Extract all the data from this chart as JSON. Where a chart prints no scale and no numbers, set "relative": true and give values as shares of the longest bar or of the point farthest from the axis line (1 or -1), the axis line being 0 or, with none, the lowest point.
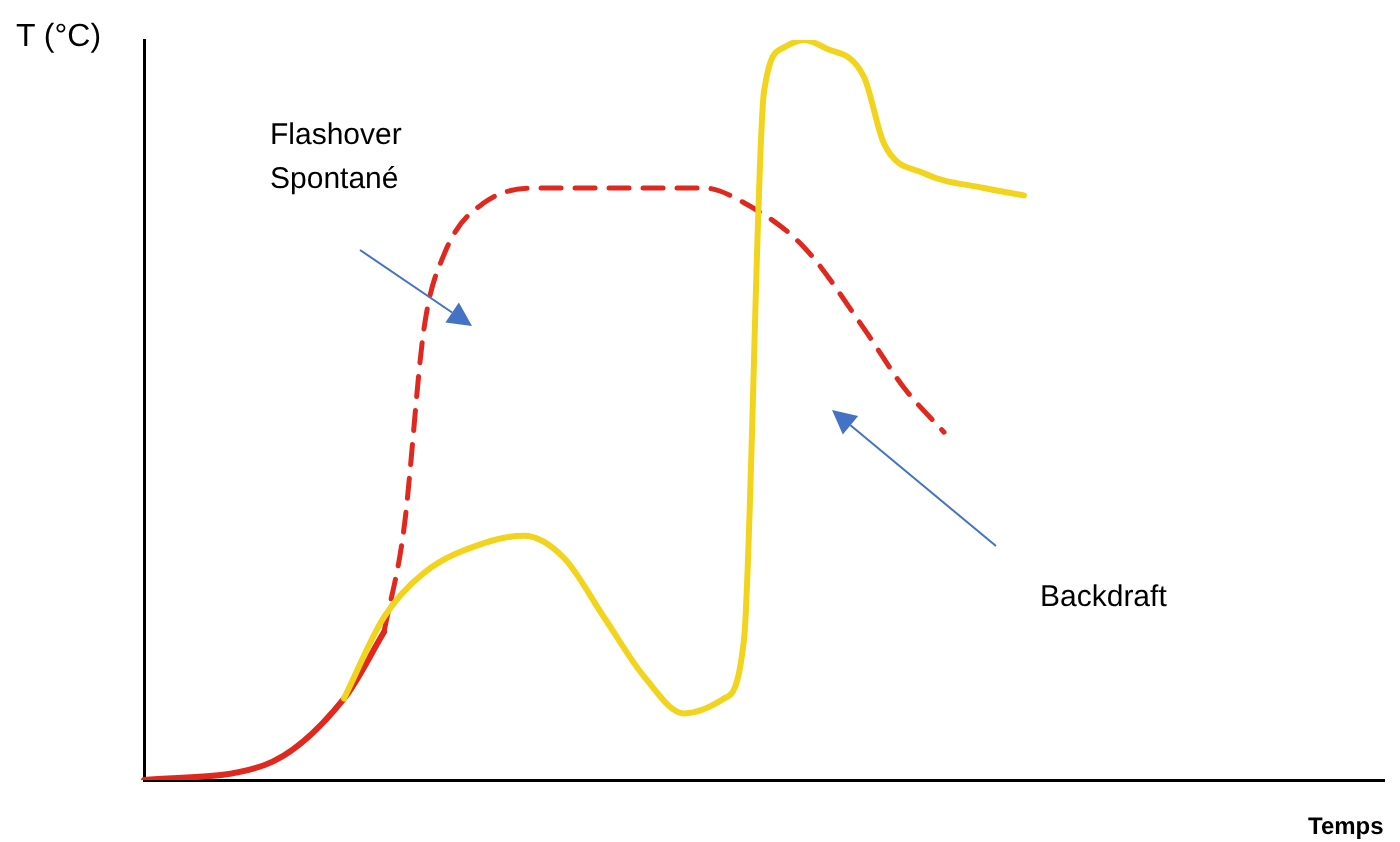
{
  "chart_data": {
    "type": "line",
    "relative": true,
    "ylabel": "T (°C)",
    "xlabel": "Temps",
    "legend": false,
    "grid": false,
    "marker": "none",
    "categories": [
      null,
      null,
      null,
      null,
      null,
      null,
      null,
      null,
      null,
      null,
      null,
      null,
      null,
      null,
      null,
      null,
      null,
      null,
      null,
      null,
      null,
      null,
      null,
      null,
      null,
      null,
      null,
      null,
      null,
      null,
      null,
      null,
      null,
      null,
      null,
      null,
      null,
      null,
      null,
      null,
      null,
      null,
      null,
      null,
      null,
      null,
      null,
      null,
      null,
      null,
      null,
      null,
      null,
      null,
      null,
      null,
      null,
      null,
      null,
      null,
      null,
      null,
      null
    ],
    "series": [
      {
        "color": "#f2d41c",
        "line_style": "solid",
        "values": [
          null,
          null,
          null,
          null,
          null,
          null,
          null,
          null,
          null,
          null,
          0.11,
          null,
          0.22,
          null,
          0.28,
          null,
          null,
          0.32,
          null,
          0.33,
          null,
          0.3,
          null,
          0.22,
          null,
          0.14,
          null,
          0.09,
          null,
          0.11,
          0.19,
          0.93,
          0.99,
          1,
          0.99,
          null,
          0.95,
          0.86,
          null,
          0.82,
          null,
          null,
          0.8,
          null,
          0.79,
          null,
          null,
          null,
          null,
          null,
          null,
          null,
          null,
          null,
          null,
          null,
          null,
          null,
          null,
          null,
          null,
          null,
          null
        ]
      },
      {
        "color": "#e0281e",
        "line_style": "solid",
        "values": [
          0,
          null,
          null,
          null,
          null,
          null,
          0.02,
          null,
          null,
          null,
          0.11,
          null,
          0.2,
          null,
          null,
          null,
          null,
          null,
          null,
          null,
          null,
          null,
          null,
          null,
          null,
          null,
          null,
          null,
          null,
          null,
          null,
          null,
          null,
          null,
          null,
          null,
          null,
          null,
          null,
          null,
          null,
          null,
          null,
          null,
          null,
          null,
          null,
          null,
          null,
          null,
          null,
          null,
          null,
          null,
          null,
          null,
          null,
          null,
          null,
          null,
          null,
          null,
          null
        ]
      },
      {
        "color": "#e0281e",
        "line_style": "dashed",
        "values": [
          null,
          null,
          null,
          null,
          null,
          null,
          null,
          null,
          null,
          null,
          null,
          null,
          0.2,
          0.34,
          0.61,
          0.71,
          null,
          0.78,
          null,
          null,
          0.8,
          null,
          null,
          null,
          null,
          0.8,
          null,
          null,
          0.8,
          null,
          0.78,
          null,
          null,
          0.72,
          null,
          null,
          0.61,
          null,
          0.53,
          null,
          0.47,
          null,
          null,
          null,
          null,
          null,
          null,
          null,
          null,
          null,
          null,
          null,
          null,
          null,
          null,
          null,
          null,
          null,
          null,
          null,
          null,
          null,
          null
        ]
      }
    ],
    "annotations": [
      "Flashover\nSpontané",
      "Backdraft"
    ]
  }
}
